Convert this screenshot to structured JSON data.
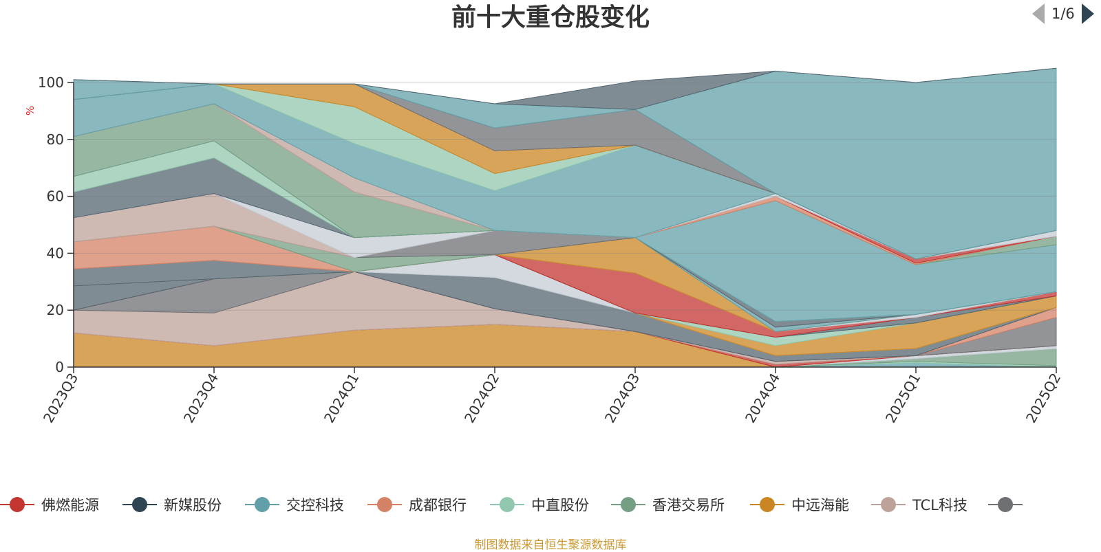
{
  "title": "前十大重仓股变化",
  "footer": "制图数据来自恒生聚源数据库",
  "legend_pager": {
    "text": "1/6"
  },
  "chart_data": {
    "type": "area",
    "stacked": true,
    "title": "前十大重仓股变化",
    "ylabel": "%",
    "ylim": [
      0,
      100
    ],
    "yticks": [
      0,
      20,
      40,
      60,
      80,
      100
    ],
    "grid": true,
    "legend_placement": "bottom",
    "x": [
      "2023Q3",
      "2023Q4",
      "2024Q1",
      "2024Q2",
      "2024Q3",
      "2024Q4",
      "2025Q1",
      "2025Q2"
    ],
    "series": [
      {
        "name": "",
        "color": "#61a0a8",
        "legend": false,
        "values": [
          0,
          0,
          0,
          0,
          0,
          0,
          1.5,
          0
        ]
      },
      {
        "name": "",
        "color": "#91c7ae",
        "legend": false,
        "values": [
          0,
          0,
          0,
          0,
          0,
          0,
          0.5,
          0.5
        ]
      },
      {
        "name": "",
        "color": "#749f83",
        "legend": false,
        "values": [
          0,
          0,
          0,
          0,
          0,
          0,
          1,
          6
        ]
      },
      {
        "name": "",
        "color": "#c4ccd3",
        "legend": false,
        "values": [
          0,
          0,
          0,
          0,
          0,
          0,
          1,
          1
        ]
      },
      {
        "name": "",
        "color": "#ca8622",
        "legend": false,
        "values": [
          12,
          7.5,
          13,
          15,
          12.5,
          0,
          0,
          0
        ]
      },
      {
        "name": "",
        "color": "#c23531",
        "legend": false,
        "values": [
          0,
          0,
          0,
          0,
          0,
          1,
          0,
          0
        ]
      },
      {
        "name": "",
        "color": "#bda29a",
        "legend": false,
        "values": [
          8,
          11.5,
          20.5,
          5.5,
          0,
          1,
          0,
          0
        ]
      },
      {
        "name": "",
        "color": "#6e7074",
        "legend": false,
        "values": [
          0,
          12,
          0,
          0,
          0,
          0,
          0,
          10
        ]
      },
      {
        "name": "",
        "color": "#d48265",
        "legend": false,
        "values": [
          0,
          0,
          0,
          0,
          0,
          0,
          0,
          3.5
        ]
      },
      {
        "name": "",
        "color": "#546570",
        "legend": false,
        "values": [
          8.5,
          0,
          0,
          11,
          6.5,
          2,
          2.5,
          0
        ]
      },
      {
        "name": "",
        "color": "#c4ccd3",
        "legend": false,
        "values": [
          0,
          0,
          0,
          8,
          0,
          0,
          0,
          0
        ]
      },
      {
        "name": "",
        "color": "#ca8622",
        "legend": false,
        "values": [
          0,
          0,
          0,
          0,
          0,
          3.5,
          9,
          4
        ]
      },
      {
        "name": "",
        "color": "#91c7ae",
        "legend": false,
        "values": [
          0,
          0,
          0,
          0,
          0,
          3,
          0,
          0
        ]
      },
      {
        "name": "",
        "color": "#546570",
        "legend": false,
        "values": [
          6,
          6.5,
          0,
          0,
          0,
          0,
          2,
          0
        ]
      },
      {
        "name": "",
        "color": "#c23531",
        "legend": false,
        "values": [
          0,
          0,
          0,
          0,
          14,
          2,
          0,
          1.5
        ]
      },
      {
        "name": "",
        "color": "#c4ccd3",
        "legend": false,
        "values": [
          0,
          0,
          0,
          0,
          0,
          0,
          1,
          0
        ]
      },
      {
        "name": "",
        "color": "#ca8622",
        "legend": false,
        "values": [
          0,
          0,
          0,
          0,
          12.5,
          0,
          0,
          0
        ]
      },
      {
        "name": "",
        "color": "#61a0a8",
        "legend": false,
        "values": [
          0,
          0,
          0,
          0,
          0,
          1.5,
          0,
          0
        ]
      },
      {
        "name": "",
        "color": "#d48265",
        "legend": false,
        "values": [
          9.5,
          12,
          0,
          0,
          0,
          0,
          0,
          0
        ]
      },
      {
        "name": "",
        "color": "#749f83",
        "legend": false,
        "values": [
          0,
          0,
          5,
          0,
          0,
          0,
          0,
          0
        ]
      },
      {
        "name": "",
        "color": "#6e7074",
        "legend": false,
        "values": [
          0,
          0,
          0,
          8.5,
          0,
          0,
          0,
          0
        ]
      },
      {
        "name": "",
        "color": "#bda29a",
        "legend": false,
        "values": [
          8.5,
          11.5,
          0,
          0,
          0,
          0,
          0,
          0
        ]
      },
      {
        "name": "",
        "color": "#c4ccd3",
        "legend": false,
        "values": [
          0,
          0,
          7,
          0,
          0,
          0,
          0,
          0
        ]
      },
      {
        "name": "",
        "color": "#546570",
        "legend": false,
        "values": [
          9,
          12.5,
          0,
          0,
          0,
          2,
          0,
          0
        ]
      },
      {
        "name": "",
        "color": "#91c7ae",
        "legend": false,
        "values": [
          5.5,
          6,
          0,
          0,
          0,
          0,
          0,
          0
        ]
      },
      {
        "name": "",
        "color": "#61a0a8",
        "legend": false,
        "values": [
          0,
          0,
          0,
          0,
          0,
          42.5,
          17.5,
          16.5
        ]
      },
      {
        "name": "",
        "color": "#749f83",
        "legend": false,
        "values": [
          14,
          13,
          16,
          0,
          0,
          0,
          0,
          3
        ]
      },
      {
        "name": "",
        "color": "#d48265",
        "legend": false,
        "values": [
          0,
          0,
          0,
          0,
          0,
          1.5,
          0.5,
          0
        ]
      },
      {
        "name": "",
        "color": "#c23531",
        "legend": false,
        "values": [
          0,
          0,
          0,
          0,
          0,
          0,
          1.5,
          0
        ]
      },
      {
        "name": "",
        "color": "#c4ccd3",
        "legend": false,
        "values": [
          0,
          0,
          0,
          0,
          0,
          1,
          0,
          2
        ]
      },
      {
        "name": "",
        "color": "#bda29a",
        "legend": false,
        "values": [
          0,
          0,
          5,
          0,
          0,
          0,
          0,
          0
        ]
      },
      {
        "name": "",
        "color": "#61a0a8",
        "legend": false,
        "values": [
          13,
          7,
          12,
          14,
          32.5,
          0,
          0,
          0
        ]
      },
      {
        "name": "",
        "color": "#91c7ae",
        "legend": false,
        "values": [
          0,
          0,
          13,
          6,
          0,
          0,
          0,
          0
        ]
      },
      {
        "name": "",
        "color": "#ca8622",
        "legend": false,
        "values": [
          0,
          0,
          8,
          8,
          0,
          0,
          0,
          0
        ]
      },
      {
        "name": "",
        "color": "#6e7074",
        "legend": false,
        "values": [
          0,
          0,
          0,
          8,
          12.5,
          0,
          0,
          0
        ]
      },
      {
        "name": "",
        "color": "#61a0a8",
        "legend": false,
        "values": [
          7,
          0,
          0,
          8.5,
          0,
          43,
          62,
          57
        ]
      },
      {
        "name": "",
        "color": "#546570",
        "legend": false,
        "values": [
          0,
          0,
          0,
          0,
          10,
          0,
          0,
          0
        ]
      }
    ],
    "legend_items": [
      {
        "name": "佛燃能源",
        "color": "#c23531"
      },
      {
        "name": "新媒股份",
        "color": "#2f4554"
      },
      {
        "name": "交控科技",
        "color": "#61a0a8"
      },
      {
        "name": "成都银行",
        "color": "#d48265"
      },
      {
        "name": "中直股份",
        "color": "#91c7ae"
      },
      {
        "name": "香港交易所",
        "color": "#749f83"
      },
      {
        "name": "中远海能",
        "color": "#ca8622"
      },
      {
        "name": "TCL科技",
        "color": "#bda29a"
      },
      {
        "name": "",
        "color": "#6e7074"
      }
    ]
  }
}
